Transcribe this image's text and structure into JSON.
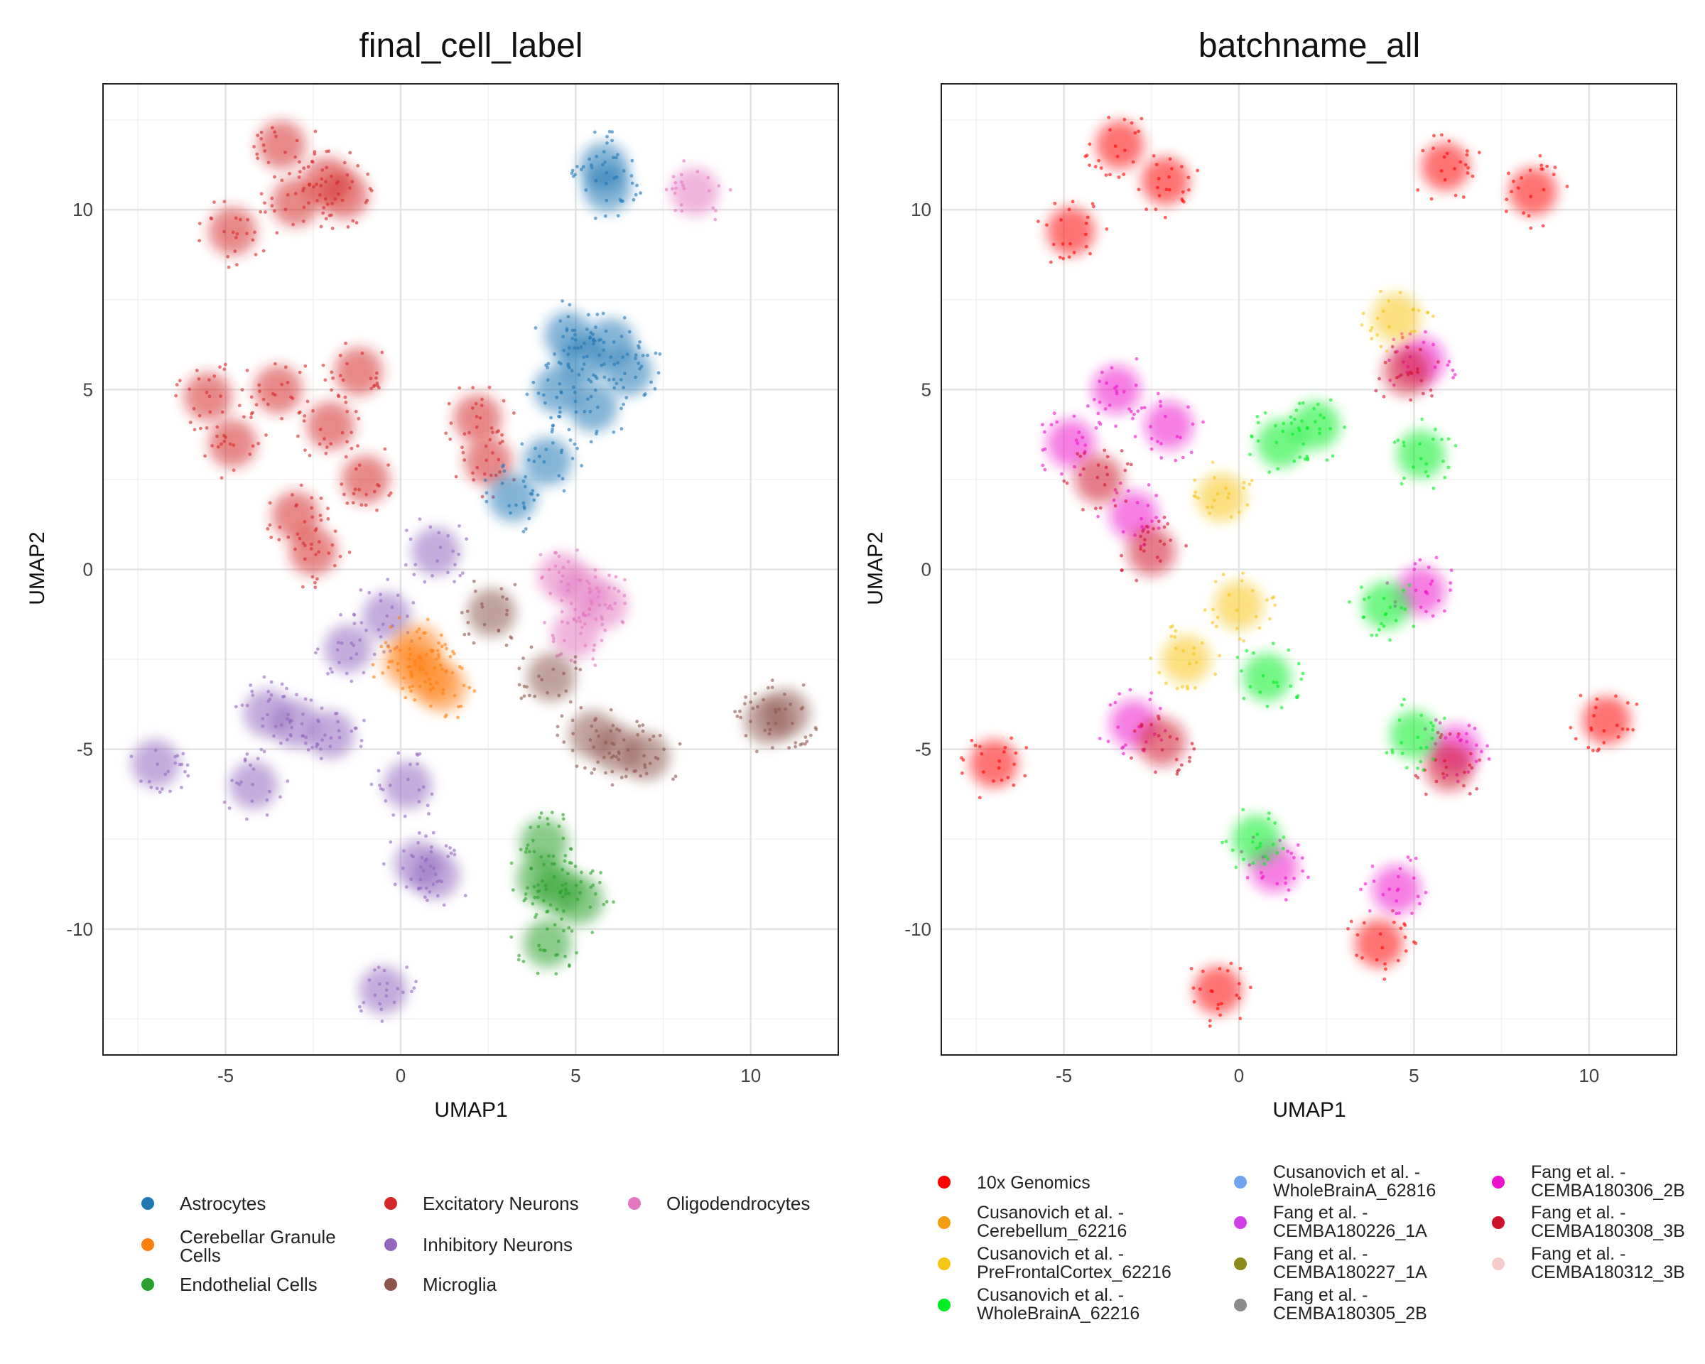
{
  "chart_data": [
    {
      "type": "scatter",
      "title": "final_cell_label",
      "xlabel": "UMAP1",
      "ylabel": "UMAP2",
      "xlim": [
        -8.5,
        12.5
      ],
      "ylim": [
        -13.5,
        13.5
      ],
      "xticks": [
        -5,
        0,
        5,
        10
      ],
      "yticks": [
        10,
        5,
        0,
        -5,
        -10
      ],
      "tick_labels_x": [
        "-5",
        "0",
        "5",
        "10"
      ],
      "tick_labels_y": [
        "10",
        "5",
        "0",
        "-5",
        "-10"
      ],
      "grid": true,
      "legend_position": "bottom",
      "legend": [
        {
          "label": "Astrocytes",
          "color": "#1f77b4"
        },
        {
          "label": "Cerebellar Granule Cells",
          "color": "#ff7f0e"
        },
        {
          "label": "Endothelial Cells",
          "color": "#2ca02c"
        },
        {
          "label": "Excitatory Neurons",
          "color": "#d62728"
        },
        {
          "label": "Inhibitory Neurons",
          "color": "#9467bd"
        },
        {
          "label": "Microglia",
          "color": "#8c564b"
        },
        {
          "label": "Oligodendrocytes",
          "color": "#e377c2"
        }
      ],
      "clusters": [
        {
          "series": "Excitatory Neurons",
          "color": "#d62728",
          "points": [
            [
              -3.4,
              11.8
            ],
            [
              -2.1,
              10.8
            ],
            [
              -4.8,
              9.4
            ],
            [
              -3.0,
              10.2
            ],
            [
              -1.6,
              10.4
            ]
          ]
        },
        {
          "series": "Excitatory Neurons",
          "color": "#d62728",
          "points": [
            [
              -3.5,
              5.0
            ],
            [
              -2.0,
              4.0
            ],
            [
              -4.8,
              3.5
            ],
            [
              -1.2,
              5.5
            ],
            [
              -3.0,
              1.5
            ],
            [
              -2.5,
              0.5
            ],
            [
              -5.5,
              4.8
            ],
            [
              -1.0,
              2.5
            ],
            [
              2.2,
              4.2
            ],
            [
              2.5,
              3.0
            ]
          ]
        },
        {
          "series": "Astrocytes",
          "color": "#1f77b4",
          "points": [
            [
              5.2,
              5.8
            ],
            [
              4.5,
              5.0
            ],
            [
              6.0,
              6.3
            ],
            [
              5.5,
              4.5
            ],
            [
              4.8,
              6.5
            ],
            [
              6.5,
              5.5
            ],
            [
              4.2,
              3.0
            ],
            [
              3.2,
              2.0
            ],
            [
              5.8,
              11.2
            ],
            [
              5.9,
              10.6
            ]
          ]
        },
        {
          "series": "Oligodendrocytes",
          "color": "#e377c2",
          "points": [
            [
              5.2,
              -0.6
            ],
            [
              4.6,
              -0.2
            ],
            [
              5.8,
              -1.0
            ],
            [
              5.0,
              -1.8
            ],
            [
              8.4,
              10.5
            ]
          ]
        },
        {
          "series": "Inhibitory Neurons",
          "color": "#9467bd",
          "points": [
            [
              -3.0,
              -4.3
            ],
            [
              -2.0,
              -4.6
            ],
            [
              -3.8,
              -4.0
            ],
            [
              -1.5,
              -2.2
            ],
            [
              1.0,
              0.5
            ],
            [
              -0.4,
              -1.3
            ],
            [
              0.5,
              -8.2
            ],
            [
              1.0,
              -8.5
            ],
            [
              0.2,
              -6.0
            ],
            [
              -7.0,
              -5.4
            ],
            [
              -0.5,
              -11.7
            ],
            [
              -4.2,
              -6.0
            ]
          ]
        },
        {
          "series": "Cerebellar Granule Cells",
          "color": "#ff7f0e",
          "points": [
            [
              0.8,
              -3.0
            ],
            [
              0.2,
              -2.6
            ],
            [
              1.2,
              -3.3
            ],
            [
              0.5,
              -2.2
            ]
          ]
        },
        {
          "series": "Microglia",
          "color": "#8c564b",
          "points": [
            [
              6.2,
              -5.0
            ],
            [
              5.5,
              -4.6
            ],
            [
              7.0,
              -5.2
            ],
            [
              4.3,
              -3.0
            ],
            [
              2.6,
              -1.2
            ],
            [
              10.5,
              -4.2
            ],
            [
              11.0,
              -4.0
            ]
          ]
        },
        {
          "series": "Endothelial Cells",
          "color": "#2ca02c",
          "points": [
            [
              4.5,
              -8.9
            ],
            [
              4.0,
              -8.6
            ],
            [
              5.1,
              -9.2
            ],
            [
              4.2,
              -10.4
            ],
            [
              4.1,
              -7.6
            ]
          ]
        }
      ]
    },
    {
      "type": "scatter",
      "title": "batchname_all",
      "xlabel": "UMAP1",
      "ylabel": "UMAP2",
      "xlim": [
        -8.5,
        12.5
      ],
      "ylim": [
        -13.5,
        13.5
      ],
      "xticks": [
        -5,
        0,
        5,
        10
      ],
      "yticks": [
        10,
        5,
        0,
        -5,
        -10
      ],
      "tick_labels_x": [
        "-5",
        "0",
        "5",
        "10"
      ],
      "tick_labels_y": [
        "10",
        "5",
        "0",
        "-5",
        "-10"
      ],
      "grid": true,
      "legend_position": "bottom",
      "legend": [
        {
          "label": [
            "10x Genomics"
          ],
          "color": "#ff0000"
        },
        {
          "label": [
            "Cusanovich et al. -",
            "Cerebellum_62216"
          ],
          "color": "#f39c12"
        },
        {
          "label": [
            "Cusanovich et al. -",
            "PreFrontalCortex_62216"
          ],
          "color": "#f5c518"
        },
        {
          "label": [
            "Cusanovich et al. -",
            "WholeBrainA_62216"
          ],
          "color": "#00ee22"
        },
        {
          "label": [
            "Cusanovich et al. -",
            "WholeBrainA_62816"
          ],
          "color": "#6fa3ef"
        },
        {
          "label": [
            "Fang et al. -",
            "CEMBA180226_1A"
          ],
          "color": "#d03ee8"
        },
        {
          "label": [
            "Fang et al. -",
            "CEMBA180227_1A"
          ],
          "color": "#8b8b1a"
        },
        {
          "label": [
            "Fang et al. -",
            "CEMBA180305_2B"
          ],
          "color": "#8c8c8c"
        },
        {
          "label": [
            "Fang et al. -",
            "CEMBA180306_2B"
          ],
          "color": "#ee11cc"
        },
        {
          "label": [
            "Fang et al. -",
            "CEMBA180308_3B"
          ],
          "color": "#d0112b"
        },
        {
          "label": [
            "Fang et al. -",
            "CEMBA180312_3B"
          ],
          "color": "#f6cccc"
        }
      ],
      "clusters": [
        {
          "series": "10x Genomics",
          "color": "#ff0000",
          "points": [
            [
              -3.4,
              11.8
            ],
            [
              -2.1,
              10.8
            ],
            [
              -4.8,
              9.4
            ],
            [
              5.9,
              11.2
            ],
            [
              8.4,
              10.5
            ],
            [
              10.5,
              -4.2
            ],
            [
              -7.0,
              -5.4
            ],
            [
              -0.6,
              -11.7
            ],
            [
              4.0,
              -10.4
            ]
          ]
        },
        {
          "series": "Fang et al. - CEMBA180306_2B",
          "color": "#ee11cc",
          "points": [
            [
              -3.5,
              5.0
            ],
            [
              -2.0,
              4.0
            ],
            [
              -4.8,
              3.5
            ],
            [
              -3.0,
              1.5
            ],
            [
              5.2,
              5.8
            ],
            [
              5.2,
              -0.6
            ],
            [
              6.2,
              -5.0
            ],
            [
              -3.0,
              -4.3
            ],
            [
              1.0,
              -8.3
            ],
            [
              4.5,
              -8.9
            ]
          ]
        },
        {
          "series": "Fang et al. - CEMBA180308_3B",
          "color": "#d0112b",
          "points": [
            [
              -2.5,
              0.5
            ],
            [
              -4.0,
              2.5
            ],
            [
              6.0,
              -5.5
            ],
            [
              -2.2,
              -4.8
            ],
            [
              4.8,
              5.5
            ]
          ]
        },
        {
          "series": "Cusanovich et al. - WholeBrainA_62216",
          "color": "#00ee22",
          "points": [
            [
              1.2,
              3.5
            ],
            [
              2.2,
              4.0
            ],
            [
              0.8,
              -3.0
            ],
            [
              5.2,
              3.2
            ],
            [
              5.0,
              -4.6
            ],
            [
              4.2,
              -1.0
            ],
            [
              0.5,
              -7.5
            ]
          ]
        },
        {
          "series": "Cusanovich et al. - PreFrontalCortex_62216",
          "color": "#f5c518",
          "points": [
            [
              -0.5,
              2.0
            ],
            [
              0.0,
              -1.0
            ],
            [
              -1.5,
              -2.5
            ],
            [
              4.5,
              7.0
            ]
          ]
        }
      ]
    }
  ]
}
